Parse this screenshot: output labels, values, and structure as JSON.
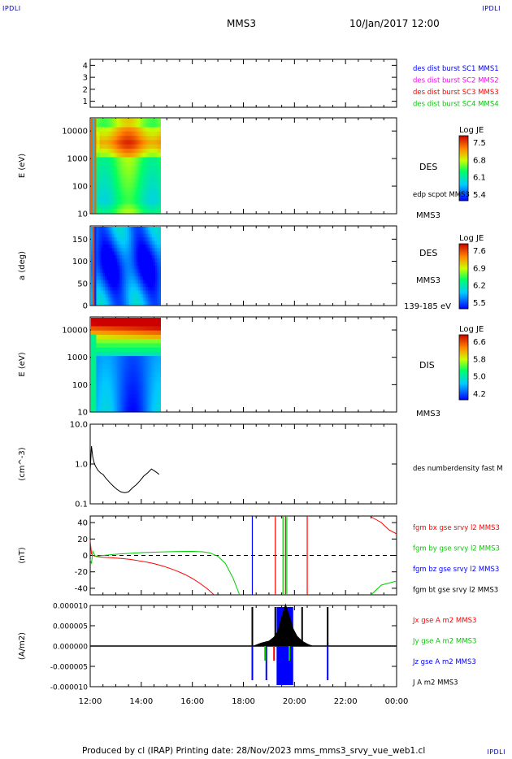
{
  "corners": {
    "tl": "IPDLI",
    "tr": "IPDLI",
    "bl": "",
    "br": "IPDLI"
  },
  "header": {
    "spacecraft": "MMS3",
    "date": "10/Jan/2017 12:00"
  },
  "footer": {
    "text": "Produced by cl (IRAP)   Printing date: 28/Nov/2023   mms_mms3_srvy_vue_web1.cl"
  },
  "time_axis": {
    "ticks": [
      "12:00",
      "14:00",
      "16:00",
      "18:00",
      "20:00",
      "22:00",
      "00:00"
    ]
  },
  "colors": {
    "blue": "#0000ff",
    "magenta": "#ff00ff",
    "red": "#ff0000",
    "green": "#00cc00",
    "black": "#000000"
  },
  "chart_data": [
    {
      "type": "scatter",
      "panel": "tracks",
      "ylim": [
        0.5,
        4.5
      ],
      "yticks": [
        "1",
        "2",
        "3",
        "4"
      ],
      "legend": [
        {
          "label": "des dist burst SC1 MMS1",
          "color": "#0000ff"
        },
        {
          "label": "des dist burst SC2 MMS2",
          "color": "#ff00ff"
        },
        {
          "label": "des dist burst SC3 MMS3",
          "color": "#ff0000"
        },
        {
          "label": "des dist burst SC4 MMS4",
          "color": "#00cc00"
        }
      ]
    },
    {
      "type": "heatmap",
      "panel": "des-energy",
      "ylabel": "E (eV)",
      "yscale": "log",
      "ylim": [
        10,
        30000
      ],
      "yticks": [
        "10",
        "100",
        "1000",
        "10000"
      ],
      "xrange_hours": [
        12.0,
        14.75
      ],
      "side_labels": [
        "DES",
        "edp scpot MMS3",
        "MMS3"
      ],
      "colorbar": {
        "title": "Log JE",
        "ticks": [
          "7.5",
          "6.8",
          "6.1",
          "5.4"
        ],
        "range": [
          5.4,
          7.6
        ]
      }
    },
    {
      "type": "heatmap",
      "panel": "des-pitch",
      "ylabel": "a (deg)",
      "ylim": [
        0,
        180
      ],
      "yticks": [
        "0",
        "50",
        "100",
        "150"
      ],
      "xrange_hours": [
        12.0,
        14.75
      ],
      "side_labels": [
        "DES",
        "MMS3",
        "139-185 eV"
      ],
      "colorbar": {
        "title": "Log JE",
        "ticks": [
          "7.6",
          "6.9",
          "6.2",
          "5.5"
        ],
        "range": [
          5.5,
          7.7
        ]
      }
    },
    {
      "type": "heatmap",
      "panel": "dis-energy",
      "ylabel": "E (eV)",
      "yscale": "log",
      "ylim": [
        10,
        30000
      ],
      "yticks": [
        "10",
        "100",
        "1000",
        "10000"
      ],
      "xrange_hours": [
        12.0,
        14.75
      ],
      "side_labels": [
        "DIS",
        "MMS3"
      ],
      "colorbar": {
        "title": "Log JE",
        "ticks": [
          "6.6",
          "5.8",
          "5.0",
          "4.2"
        ],
        "range": [
          4.2,
          6.8
        ]
      }
    },
    {
      "type": "line",
      "panel": "density",
      "ylabel": "(cm^-3)",
      "yscale": "log",
      "ylim": [
        0.1,
        10
      ],
      "yticks": [
        "0.1",
        "1.0",
        "10.0"
      ],
      "series": [
        {
          "name": "des numberdensity fast M",
          "color": "#000000",
          "x": [
            12.0,
            12.05,
            12.1,
            12.15,
            12.2,
            12.3,
            12.4,
            12.5,
            12.6,
            12.75,
            12.9,
            13.05,
            13.2,
            13.35,
            13.5,
            13.65,
            13.8,
            13.95,
            14.1,
            14.25,
            14.4,
            14.55,
            14.7
          ],
          "y": [
            0.7,
            2.8,
            1.5,
            1.1,
            0.9,
            0.7,
            0.6,
            0.55,
            0.45,
            0.35,
            0.28,
            0.23,
            0.2,
            0.19,
            0.2,
            0.25,
            0.3,
            0.38,
            0.5,
            0.6,
            0.75,
            0.65,
            0.55
          ]
        }
      ]
    },
    {
      "type": "line",
      "panel": "fgm",
      "ylabel": "(nT)",
      "ylim": [
        -48,
        48
      ],
      "yticks": [
        "-40",
        "-20",
        "0",
        "20",
        "40"
      ],
      "series": [
        {
          "name": "fgm bx gse srvy l2 MMS3",
          "color": "#ff0000",
          "x": [
            12.0,
            12.05,
            12.1,
            12.2,
            12.4,
            12.7,
            13.0,
            13.3,
            13.6,
            13.9,
            14.2,
            14.5,
            14.8,
            15.1,
            15.4,
            15.7,
            16.0,
            16.3,
            16.6,
            16.85
          ],
          "y": [
            18,
            2,
            0,
            -1,
            -2,
            -2.5,
            -3.2,
            -4,
            -5,
            -6.5,
            -8,
            -10,
            -12.5,
            -15.5,
            -19,
            -23,
            -28,
            -34,
            -41,
            -48
          ]
        },
        {
          "name": "fgm by gse srvy l2 MMS3",
          "color": "#00cc00",
          "x": [
            12.0,
            12.05,
            12.1,
            12.2,
            12.5,
            13.0,
            13.5,
            14.0,
            14.5,
            15.0,
            15.5,
            16.0,
            16.4,
            16.7,
            17.0,
            17.3,
            17.6,
            17.85
          ],
          "y": [
            -5,
            -10,
            5,
            -1,
            0,
            1.5,
            2.5,
            3.5,
            4,
            4.5,
            4.8,
            5,
            4.5,
            3,
            -1,
            -10,
            -28,
            -48
          ]
        },
        {
          "name": "fgm bz gse srvy l2 MMS3",
          "color": "#0000ff",
          "x": [],
          "y": []
        },
        {
          "name": "fgm bt gse srvy l2 MMS3",
          "color": "#000000",
          "x": [],
          "y": []
        }
      ]
    },
    {
      "type": "line",
      "panel": "current",
      "ylabel": "(A/m2)",
      "ylim": [
        -1e-05,
        1e-05
      ],
      "yticks": [
        "-0.000010",
        "-0.000005",
        "0.000000",
        "0.000005",
        "0.000010"
      ],
      "series": [
        {
          "name": "Jx gse A m2 MMS3",
          "color": "#ff0000",
          "x": [],
          "y": []
        },
        {
          "name": "Jy gse A m2 MMS3",
          "color": "#00cc00",
          "x": [],
          "y": []
        },
        {
          "name": "Jz gse A m2 MMS3",
          "color": "#0000ff",
          "x": [],
          "y": []
        },
        {
          "name": "J A m2 MMS3",
          "color": "#000000",
          "x": [],
          "y": []
        }
      ]
    }
  ]
}
